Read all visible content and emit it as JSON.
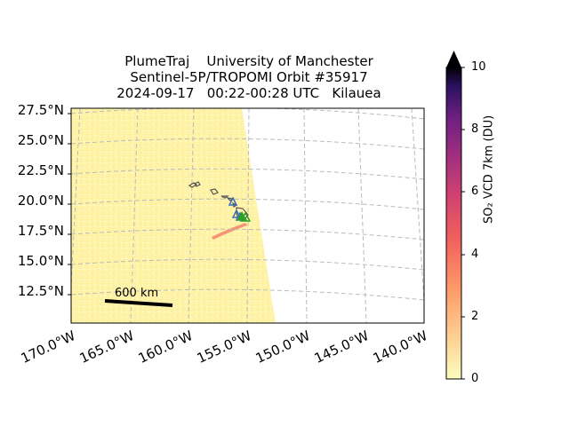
{
  "title": {
    "line1": "PlumeTraj    University of Manchester",
    "line2": "Sentinel-5P/TROPOMI Orbit #35917",
    "line3": "2024-09-17   00:22-00:28 UTC   Kilauea"
  },
  "map": {
    "lat_ticks": [
      "27.5°N",
      "25.0°N",
      "22.5°N",
      "20.0°N",
      "17.5°N",
      "15.0°N",
      "12.5°N"
    ],
    "lon_ticks": [
      "170.0°W",
      "165.0°W",
      "160.0°W",
      "155.0°W",
      "150.0°W",
      "145.0°W",
      "140.0°W"
    ],
    "scale_bar_label": "600 km",
    "grid": true,
    "colors": {
      "swath_fill": "#fff6b3",
      "plume": "#f4806c",
      "coastline": "#555555",
      "grid_line": "#bbbbbb",
      "vent_marker_blue": "#3a6fb5",
      "vent_marker_green": "#2ca02c"
    }
  },
  "colorbar": {
    "label": "SO₂ VCD 7km (DU)",
    "ticks": [
      "0",
      "2",
      "4",
      "6",
      "8",
      "10"
    ],
    "extend": "max",
    "colormap": "magma_r",
    "range": [
      0,
      10
    ]
  }
}
